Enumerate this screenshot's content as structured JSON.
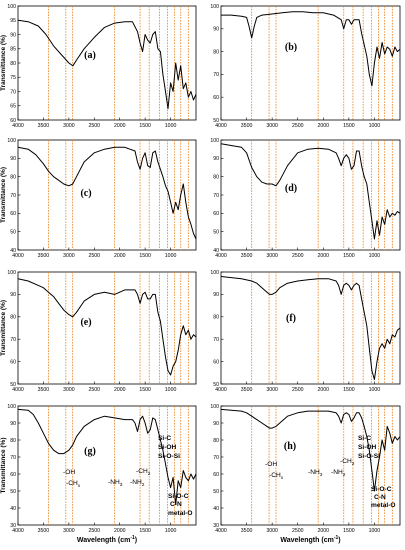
{
  "accent_colors": {
    "guide_lines": "#e8801e",
    "spectrum": "#000000"
  },
  "guide_wavenumbers": [
    3400,
    3060,
    2925,
    2100,
    1600,
    1420,
    1220,
    1060,
    920,
    800,
    650
  ],
  "chart_data": [
    {
      "type": "line",
      "panel_label": "(a)",
      "xlabel": "",
      "ylabel": "Transmittance (%)",
      "xlim": [
        4000,
        500
      ],
      "ylim": [
        60,
        100
      ],
      "x_ticks": [
        4000,
        3500,
        3000,
        2500,
        2000,
        1500,
        1000
      ],
      "y_ticks": [
        60,
        65,
        70,
        75,
        80,
        85,
        90,
        95,
        100
      ],
      "series": [
        {
          "x": [
            4000,
            3800,
            3600,
            3450,
            3300,
            3150,
            3000,
            2920,
            2850,
            2700,
            2500,
            2300,
            2100,
            1900,
            1750,
            1650,
            1600,
            1550,
            1500,
            1450,
            1400,
            1350,
            1300,
            1250,
            1200,
            1150,
            1100,
            1050,
            1000,
            950,
            900,
            850,
            800,
            750,
            700,
            650,
            600,
            550,
            500
          ],
          "y": [
            95,
            94.5,
            93,
            90,
            86,
            83,
            80,
            79,
            81,
            85,
            89,
            92.5,
            94,
            94.5,
            94.5,
            91,
            87,
            84,
            90,
            88,
            87,
            90,
            91,
            85,
            84,
            76,
            70,
            64,
            73,
            70,
            80,
            74,
            79,
            71,
            73,
            68,
            70,
            67,
            69
          ]
        }
      ]
    },
    {
      "type": "line",
      "panel_label": "(b)",
      "xlabel": "",
      "ylabel": "",
      "xlim": [
        4000,
        500
      ],
      "ylim": [
        50,
        100
      ],
      "x_ticks": [
        4000,
        3500,
        3000,
        2500,
        2000,
        1500,
        1000
      ],
      "y_ticks": [
        50,
        60,
        70,
        80,
        90,
        100
      ],
      "series": [
        {
          "x": [
            4000,
            3800,
            3600,
            3500,
            3450,
            3400,
            3350,
            3300,
            3200,
            3000,
            2800,
            2600,
            2400,
            2200,
            2000,
            1800,
            1650,
            1600,
            1550,
            1500,
            1450,
            1400,
            1300,
            1250,
            1200,
            1150,
            1100,
            1050,
            1000,
            950,
            900,
            850,
            800,
            750,
            700,
            650,
            600,
            550,
            500
          ],
          "y": [
            96,
            96,
            95.5,
            95,
            91,
            86,
            91,
            95,
            96,
            96.5,
            97,
            97.5,
            97.5,
            97,
            97,
            96,
            94,
            90,
            94,
            94,
            92,
            94,
            94,
            88,
            83,
            78,
            70,
            65,
            75,
            82,
            77,
            84,
            79,
            82,
            81,
            78,
            82,
            80,
            81
          ]
        }
      ]
    },
    {
      "type": "line",
      "panel_label": "(c)",
      "xlabel": "",
      "ylabel": "Transmittance (%)",
      "xlim": [
        4000,
        500
      ],
      "ylim": [
        40,
        100
      ],
      "x_ticks": [
        4000,
        3500,
        3000,
        2500,
        2000,
        1500,
        1000
      ],
      "y_ticks": [
        40,
        50,
        60,
        70,
        80,
        90,
        100
      ],
      "series": [
        {
          "x": [
            4000,
            3800,
            3650,
            3500,
            3400,
            3300,
            3200,
            3100,
            3000,
            2925,
            2850,
            2700,
            2500,
            2300,
            2100,
            1900,
            1700,
            1650,
            1600,
            1550,
            1500,
            1450,
            1400,
            1350,
            1300,
            1250,
            1200,
            1150,
            1100,
            1050,
            1000,
            950,
            900,
            850,
            800,
            750,
            700,
            650,
            600,
            550,
            500
          ],
          "y": [
            96,
            95,
            92,
            87,
            83,
            80,
            78,
            76,
            75,
            76,
            80,
            88,
            93,
            95,
            96,
            96,
            94,
            88,
            84,
            90,
            93,
            86,
            85,
            93,
            94,
            88,
            84,
            80,
            75,
            72,
            66,
            60,
            66,
            62,
            70,
            76,
            66,
            58,
            54,
            49,
            46
          ]
        }
      ]
    },
    {
      "type": "line",
      "panel_label": "(d)",
      "xlabel": "",
      "ylabel": "",
      "xlim": [
        4000,
        500
      ],
      "ylim": [
        40,
        100
      ],
      "x_ticks": [
        4000,
        3500,
        3000,
        2500,
        2000,
        1500,
        1000
      ],
      "y_ticks": [
        40,
        50,
        60,
        70,
        80,
        90,
        100
      ],
      "series": [
        {
          "x": [
            4000,
            3800,
            3600,
            3500,
            3400,
            3300,
            3200,
            3100,
            3000,
            2925,
            2850,
            2700,
            2500,
            2300,
            2100,
            1900,
            1750,
            1700,
            1650,
            1600,
            1550,
            1500,
            1450,
            1400,
            1350,
            1300,
            1250,
            1200,
            1150,
            1100,
            1050,
            1000,
            950,
            900,
            850,
            800,
            750,
            700,
            650,
            600,
            550,
            500
          ],
          "y": [
            98,
            97,
            96,
            93,
            85,
            80,
            77,
            76,
            76,
            75,
            78,
            86,
            93,
            95,
            95.5,
            95,
            93,
            90,
            86,
            90,
            92,
            90,
            84,
            86,
            94,
            94,
            86,
            80,
            76,
            66,
            56,
            46,
            56,
            48,
            58,
            54,
            62,
            58,
            60,
            59,
            61,
            60
          ]
        }
      ]
    },
    {
      "type": "line",
      "panel_label": "(e)",
      "xlabel": "",
      "ylabel": "Transmittance (%)",
      "xlim": [
        4000,
        500
      ],
      "ylim": [
        50,
        100
      ],
      "x_ticks": [
        4000,
        3500,
        3000,
        2500,
        2000,
        1500,
        1000
      ],
      "y_ticks": [
        50,
        60,
        70,
        80,
        90,
        100
      ],
      "series": [
        {
          "x": [
            4000,
            3800,
            3600,
            3500,
            3400,
            3300,
            3200,
            3100,
            3000,
            2925,
            2850,
            2700,
            2500,
            2300,
            2100,
            1900,
            1700,
            1650,
            1600,
            1550,
            1500,
            1450,
            1400,
            1350,
            1300,
            1250,
            1200,
            1150,
            1100,
            1050,
            1000,
            950,
            900,
            850,
            800,
            750,
            700,
            650,
            600,
            550,
            500
          ],
          "y": [
            97,
            96,
            94,
            93,
            91,
            89,
            86,
            83,
            81,
            80,
            82,
            87,
            90,
            91,
            90,
            92,
            92,
            90,
            86,
            90,
            91,
            88,
            88,
            90,
            90,
            82,
            78,
            70,
            62,
            56,
            54,
            58,
            60,
            65,
            72,
            76,
            72,
            74,
            70,
            72,
            71
          ]
        }
      ]
    },
    {
      "type": "line",
      "panel_label": "(f)",
      "xlabel": "",
      "ylabel": "",
      "xlim": [
        4000,
        500
      ],
      "ylim": [
        50,
        100
      ],
      "x_ticks": [
        4000,
        3500,
        3000,
        2500,
        2000,
        1500,
        1000
      ],
      "y_ticks": [
        50,
        60,
        70,
        80,
        90,
        100
      ],
      "series": [
        {
          "x": [
            4000,
            3800,
            3600,
            3400,
            3300,
            3200,
            3100,
            3050,
            3000,
            2925,
            2850,
            2700,
            2500,
            2300,
            2100,
            1900,
            1750,
            1700,
            1650,
            1600,
            1550,
            1500,
            1450,
            1400,
            1350,
            1300,
            1250,
            1200,
            1150,
            1100,
            1050,
            1000,
            950,
            900,
            850,
            800,
            750,
            700,
            650,
            600,
            550,
            500
          ],
          "y": [
            98,
            97.5,
            97,
            96,
            95,
            93,
            91,
            90,
            90,
            91,
            93,
            95,
            96,
            96.5,
            97,
            97,
            96,
            94,
            90,
            94,
            95,
            94,
            92,
            94,
            95,
            94,
            88,
            82,
            76,
            66,
            56,
            52,
            60,
            66,
            68,
            66,
            70,
            68,
            72,
            71,
            74,
            75
          ]
        }
      ]
    },
    {
      "type": "line",
      "panel_label": "(g)",
      "xlabel": "Wavelength (cm<sup>-1</sup>)",
      "ylabel": "Transmittance (%)",
      "xlim": [
        4000,
        500
      ],
      "ylim": [
        30,
        100
      ],
      "x_ticks": [
        4000,
        3500,
        3000,
        2500,
        2000,
        1500,
        1000
      ],
      "y_ticks": [
        30,
        40,
        50,
        60,
        70,
        80,
        90,
        100
      ],
      "series": [
        {
          "x": [
            4000,
            3800,
            3700,
            3600,
            3500,
            3400,
            3300,
            3200,
            3100,
            3000,
            2925,
            2850,
            2700,
            2500,
            2300,
            2100,
            1900,
            1750,
            1700,
            1650,
            1600,
            1550,
            1500,
            1450,
            1400,
            1350,
            1300,
            1250,
            1200,
            1150,
            1100,
            1050,
            1000,
            950,
            900,
            850,
            800,
            750,
            700,
            650,
            600,
            550,
            500
          ],
          "y": [
            98,
            97.5,
            95,
            90,
            84,
            78,
            74,
            72,
            72,
            74,
            77,
            82,
            88,
            92,
            94,
            93,
            92,
            92,
            90,
            85,
            92,
            94,
            90,
            84,
            86,
            93,
            92,
            86,
            80,
            74,
            66,
            58,
            52,
            58,
            42,
            56,
            52,
            62,
            58,
            56,
            60,
            57,
            60
          ]
        }
      ]
    },
    {
      "type": "line",
      "panel_label": "(h)",
      "xlabel": "Wavelength (cm<sup>-1</sup>)",
      "ylabel": "",
      "xlim": [
        4000,
        500
      ],
      "ylim": [
        30,
        100
      ],
      "x_ticks": [
        4000,
        3500,
        3000,
        2500,
        2000,
        1500,
        1000
      ],
      "y_ticks": [
        30,
        40,
        50,
        60,
        70,
        80,
        90,
        100
      ],
      "series": [
        {
          "x": [
            4000,
            3800,
            3600,
            3500,
            3400,
            3300,
            3200,
            3100,
            3050,
            3000,
            2925,
            2850,
            2700,
            2500,
            2300,
            2100,
            1900,
            1750,
            1700,
            1650,
            1600,
            1550,
            1500,
            1450,
            1400,
            1350,
            1300,
            1250,
            1200,
            1150,
            1100,
            1050,
            1000,
            950,
            900,
            850,
            800,
            750,
            700,
            650,
            600,
            550,
            500
          ],
          "y": [
            98,
            97.5,
            97,
            96,
            94,
            92,
            90,
            88,
            87,
            87,
            88,
            90,
            94,
            96,
            97,
            97,
            97,
            96,
            94,
            90,
            95,
            96,
            95,
            91,
            93,
            96,
            96,
            93,
            88,
            82,
            74,
            62,
            50,
            62,
            70,
            80,
            74,
            88,
            84,
            78,
            82,
            80,
            82
          ]
        }
      ]
    }
  ],
  "annotations": {
    "g": {
      "oh": "-OH",
      "chx": "-CH",
      "chx_sub": "x",
      "nh3": "-NH",
      "nh3_sub": "3",
      "nh2": "-NH",
      "nh2_sub": "2",
      "ch2": "-CH",
      "ch2_sub": "2",
      "sic": "Si-C",
      "sioh": "Si-OH",
      "siosi": "Si-O-Si",
      "sioc": "Si-O-C",
      "cn": "C-N",
      "metalo": "metal-O"
    },
    "h": {
      "oh": "-OH",
      "chx": "-CH",
      "chx_sub": "x",
      "nh3": "-NH",
      "nh3_sub": "3",
      "nh2": "-NH",
      "nh2_sub": "2",
      "ch2": "-CH",
      "ch2_sub": "2",
      "sic": "Si-C",
      "sioh": "Si-OH",
      "siosi": "Si-O-Si",
      "sioc": "Si-O-C",
      "cn": "C-N",
      "metalo": "metal-O"
    }
  }
}
